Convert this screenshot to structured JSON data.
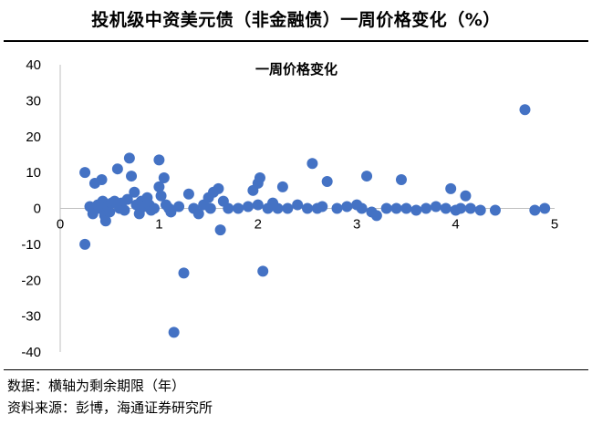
{
  "header": {
    "title": "投机级中资美元债（非金融债）一周价格变化（%）"
  },
  "notes": {
    "data_note": "数据：横轴为剩余期限（年）",
    "source": "资料来源：彭博，海通证券研究所"
  },
  "chart_data": {
    "type": "scatter",
    "title": "一周价格变化",
    "xlabel": "",
    "ylabel": "",
    "xlim": [
      0,
      5
    ],
    "ylim": [
      -40,
      40
    ],
    "xticks": [
      "0",
      "1",
      "2",
      "3",
      "4",
      "5"
    ],
    "yticks": [
      "40",
      "30",
      "20",
      "10",
      "0",
      "-10",
      "-20",
      "-30",
      "-40"
    ],
    "grid": false,
    "legend": "none",
    "point_color": "#4472C4",
    "points": [
      [
        0.25,
        10
      ],
      [
        0.25,
        -10
      ],
      [
        0.3,
        0.5
      ],
      [
        0.33,
        -1.5
      ],
      [
        0.35,
        7
      ],
      [
        0.38,
        1
      ],
      [
        0.4,
        0
      ],
      [
        0.42,
        8
      ],
      [
        0.43,
        2
      ],
      [
        0.45,
        -2
      ],
      [
        0.46,
        -3.5
      ],
      [
        0.48,
        0.5
      ],
      [
        0.5,
        -1
      ],
      [
        0.52,
        1.5
      ],
      [
        0.55,
        2
      ],
      [
        0.58,
        11
      ],
      [
        0.6,
        0
      ],
      [
        0.62,
        1.5
      ],
      [
        0.65,
        -0.5
      ],
      [
        0.68,
        2.5
      ],
      [
        0.7,
        14
      ],
      [
        0.72,
        9
      ],
      [
        0.75,
        4.5
      ],
      [
        0.77,
        1
      ],
      [
        0.8,
        -1.5
      ],
      [
        0.82,
        2
      ],
      [
        0.85,
        0.5
      ],
      [
        0.88,
        3
      ],
      [
        0.9,
        1
      ],
      [
        0.92,
        -0.5
      ],
      [
        0.95,
        0
      ],
      [
        1.0,
        6
      ],
      [
        1.0,
        13.5
      ],
      [
        1.02,
        3.5
      ],
      [
        1.05,
        8.5
      ],
      [
        1.07,
        1
      ],
      [
        1.1,
        0
      ],
      [
        1.12,
        -1
      ],
      [
        1.15,
        -34.5
      ],
      [
        1.2,
        0.5
      ],
      [
        1.25,
        -18
      ],
      [
        1.3,
        4
      ],
      [
        1.35,
        0
      ],
      [
        1.4,
        -1.5
      ],
      [
        1.45,
        1
      ],
      [
        1.5,
        3
      ],
      [
        1.52,
        0
      ],
      [
        1.55,
        4.5
      ],
      [
        1.6,
        5.5
      ],
      [
        1.62,
        -6
      ],
      [
        1.65,
        2
      ],
      [
        1.7,
        0
      ],
      [
        1.8,
        0
      ],
      [
        1.9,
        0.5
      ],
      [
        1.95,
        5
      ],
      [
        2.0,
        1
      ],
      [
        2.0,
        7
      ],
      [
        2.02,
        8.5
      ],
      [
        2.05,
        -17.5
      ],
      [
        2.1,
        0
      ],
      [
        2.15,
        1.5
      ],
      [
        2.2,
        0
      ],
      [
        2.25,
        6
      ],
      [
        2.3,
        0
      ],
      [
        2.4,
        1
      ],
      [
        2.5,
        0
      ],
      [
        2.55,
        12.5
      ],
      [
        2.6,
        0
      ],
      [
        2.65,
        0.5
      ],
      [
        2.7,
        7.5
      ],
      [
        2.8,
        0
      ],
      [
        2.9,
        0.5
      ],
      [
        3.0,
        1
      ],
      [
        3.05,
        0
      ],
      [
        3.1,
        9
      ],
      [
        3.15,
        -1
      ],
      [
        3.2,
        -2
      ],
      [
        3.3,
        0
      ],
      [
        3.4,
        0
      ],
      [
        3.45,
        8
      ],
      [
        3.5,
        0
      ],
      [
        3.6,
        -0.5
      ],
      [
        3.7,
        0
      ],
      [
        3.8,
        0.5
      ],
      [
        3.9,
        0
      ],
      [
        3.95,
        5.5
      ],
      [
        4.0,
        -0.5
      ],
      [
        4.05,
        0
      ],
      [
        4.1,
        3.5
      ],
      [
        4.15,
        0
      ],
      [
        4.25,
        -0.5
      ],
      [
        4.4,
        -0.5
      ],
      [
        4.7,
        27.5
      ],
      [
        4.8,
        -0.5
      ],
      [
        4.9,
        0
      ]
    ]
  }
}
